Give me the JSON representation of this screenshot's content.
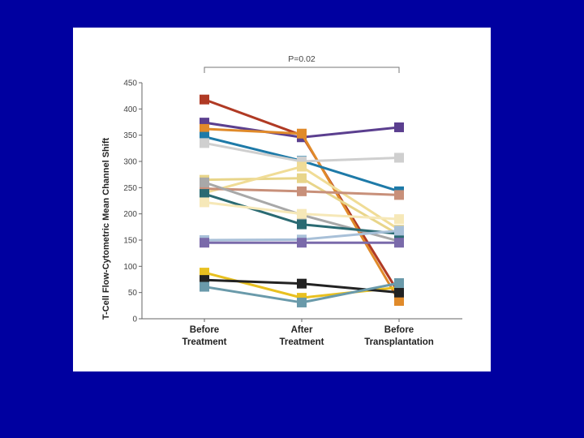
{
  "chart_data": {
    "type": "line",
    "title": "",
    "xlabel": "",
    "ylabel": "T-Cell Flow-Cytometric Mean Channel Shift",
    "categories": [
      [
        "Before",
        "Treatment"
      ],
      [
        "After",
        "Treatment"
      ],
      [
        "Before",
        "Transplantation"
      ]
    ],
    "ylim": [
      0,
      450
    ],
    "yticks": [
      0,
      50,
      100,
      150,
      200,
      250,
      300,
      350,
      400,
      450
    ],
    "annotation": "P=0.02",
    "grid": false,
    "legend": "none",
    "series": [
      {
        "color": "#b03a24",
        "values": [
          418,
          350,
          48
        ]
      },
      {
        "color": "#5b3f8f",
        "values": [
          374,
          346,
          365
        ]
      },
      {
        "color": "#e08a2a",
        "values": [
          362,
          353,
          34
        ]
      },
      {
        "color": "#1e7aa8",
        "values": [
          347,
          301,
          243
        ]
      },
      {
        "color": "#cfcfcf",
        "values": [
          335,
          300,
          307
        ]
      },
      {
        "color": "#e8d58a",
        "values": [
          265,
          268,
          160
        ]
      },
      {
        "color": "#f0dc96",
        "values": [
          240,
          290,
          170
        ]
      },
      {
        "color": "#c8907a",
        "values": [
          248,
          243,
          236
        ]
      },
      {
        "color": "#a8a8a8",
        "values": [
          260,
          198,
          148
        ]
      },
      {
        "color": "#2a6a72",
        "values": [
          238,
          180,
          162
        ]
      },
      {
        "color": "#f6e8b8",
        "values": [
          222,
          200,
          190
        ]
      },
      {
        "color": "#a8c0d8",
        "values": [
          150,
          151,
          168
        ]
      },
      {
        "color": "#7a6aaa",
        "values": [
          145,
          145,
          145
        ]
      },
      {
        "color": "#e8c020",
        "values": [
          88,
          40,
          60
        ]
      },
      {
        "color": "#222222",
        "values": [
          74,
          67,
          50
        ]
      },
      {
        "color": "#6a9aaa",
        "values": [
          61,
          31,
          68
        ]
      }
    ]
  }
}
